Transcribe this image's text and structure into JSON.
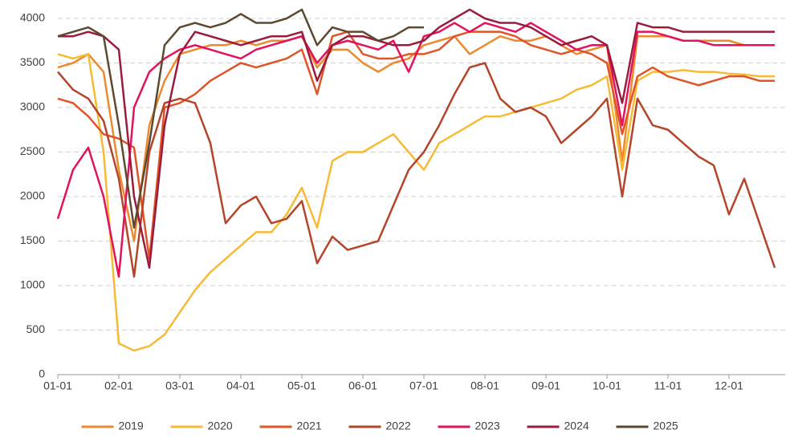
{
  "chart_data": {
    "type": "line",
    "categories": [
      "01-01",
      null,
      null,
      null,
      "02-01",
      null,
      null,
      null,
      "03-01",
      null,
      null,
      null,
      "04-01",
      null,
      null,
      null,
      "05-01",
      null,
      null,
      null,
      "06-01",
      null,
      null,
      null,
      "07-01",
      null,
      null,
      null,
      "08-01",
      null,
      null,
      null,
      "09-01",
      null,
      null,
      null,
      "10-01",
      null,
      null,
      null,
      "11-01",
      null,
      null,
      null,
      "12-01",
      null,
      null,
      null
    ],
    "ylim": [
      0,
      4000
    ],
    "yticks": [
      0,
      500,
      1000,
      1500,
      2000,
      2500,
      3000,
      3500,
      4000
    ],
    "grid": true,
    "legend": "bottom",
    "series": [
      {
        "name": "2019",
        "color": "#ec8a2e",
        "values": [
          3450,
          3500,
          3600,
          3400,
          2300,
          1500,
          2800,
          3300,
          3600,
          3650,
          3700,
          3700,
          3750,
          3700,
          3750,
          3750,
          3800,
          3450,
          3650,
          3650,
          3500,
          3400,
          3500,
          3550,
          3700,
          3750,
          3800,
          3600,
          3700,
          3800,
          3750,
          3750,
          3800,
          3700,
          3600,
          3650,
          3700,
          2400,
          3800,
          3800,
          3800,
          3750,
          3750,
          3750,
          3750,
          3700,
          3700,
          3700
        ]
      },
      {
        "name": "2020",
        "color": "#f6bb35",
        "values": [
          3600,
          3550,
          3600,
          2500,
          350,
          270,
          320,
          450,
          700,
          950,
          1150,
          1300,
          1450,
          1600,
          1600,
          1800,
          2100,
          1650,
          2400,
          2500,
          2500,
          2600,
          2700,
          2500,
          2300,
          2600,
          2700,
          2800,
          2900,
          2900,
          2950,
          3000,
          3050,
          3100,
          3200,
          3250,
          3350,
          2300,
          3300,
          3400,
          3400,
          3420,
          3400,
          3400,
          3380,
          3370,
          3350,
          3350
        ]
      },
      {
        "name": "2021",
        "color": "#df5428",
        "values": [
          3100,
          3050,
          2900,
          2700,
          2650,
          2550,
          1300,
          3000,
          3050,
          3150,
          3300,
          3400,
          3500,
          3450,
          3500,
          3550,
          3650,
          3150,
          3800,
          3850,
          3600,
          3550,
          3550,
          3600,
          3600,
          3650,
          3800,
          3850,
          3850,
          3850,
          3800,
          3700,
          3650,
          3600,
          3650,
          3600,
          3500,
          2700,
          3350,
          3450,
          3350,
          3300,
          3250,
          3300,
          3350,
          3350,
          3300,
          3300
        ]
      },
      {
        "name": "2022",
        "color": "#b4452a",
        "values": [
          3400,
          3200,
          3100,
          2850,
          2200,
          1100,
          2500,
          3050,
          3100,
          3050,
          2600,
          1700,
          1900,
          2000,
          1700,
          1750,
          1950,
          1250,
          1550,
          1400,
          1450,
          1500,
          1900,
          2300,
          2500,
          2800,
          3150,
          3450,
          3500,
          3100,
          2950,
          3000,
          2900,
          2600,
          2750,
          2900,
          3100,
          2000,
          3100,
          2800,
          2750,
          2600,
          2450,
          2350,
          1800,
          2200,
          1700,
          1200
        ]
      },
      {
        "name": "2023",
        "color": "#e2125c",
        "values": [
          1750,
          2300,
          2550,
          2000,
          1100,
          3000,
          3400,
          3550,
          3650,
          3700,
          3650,
          3600,
          3550,
          3650,
          3700,
          3750,
          3800,
          3500,
          3700,
          3750,
          3700,
          3650,
          3750,
          3400,
          3800,
          3850,
          3950,
          3850,
          3950,
          3900,
          3850,
          3950,
          3850,
          3750,
          3650,
          3700,
          3700,
          2800,
          3850,
          3850,
          3800,
          3750,
          3750,
          3700,
          3700,
          3700,
          3700,
          3700
        ]
      },
      {
        "name": "2024",
        "color": "#9a1c3d",
        "values": [
          3800,
          3800,
          3850,
          3800,
          3650,
          2000,
          1200,
          2800,
          3600,
          3850,
          3800,
          3750,
          3700,
          3750,
          3800,
          3800,
          3850,
          3300,
          3700,
          3800,
          3800,
          3750,
          3700,
          3700,
          3750,
          3900,
          4000,
          4100,
          4000,
          3950,
          3950,
          3900,
          3800,
          3700,
          3750,
          3800,
          3700,
          3050,
          3950,
          3900,
          3900,
          3850,
          3850,
          3850,
          3850,
          3850,
          3850,
          3850
        ]
      },
      {
        "name": "2025",
        "color": "#5b4a31",
        "values": [
          3800,
          3850,
          3900,
          3800,
          2800,
          1650,
          2600,
          3700,
          3900,
          3950,
          3900,
          3950,
          4050,
          3950,
          3950,
          4000,
          4100,
          3700,
          3900,
          3850,
          3850,
          3750,
          3800,
          3900,
          3900,
          null,
          null,
          null,
          null,
          null,
          null,
          null,
          null,
          null,
          null,
          null,
          null,
          null,
          null,
          null,
          null,
          null,
          null,
          null,
          null,
          null,
          null,
          null
        ]
      }
    ]
  }
}
